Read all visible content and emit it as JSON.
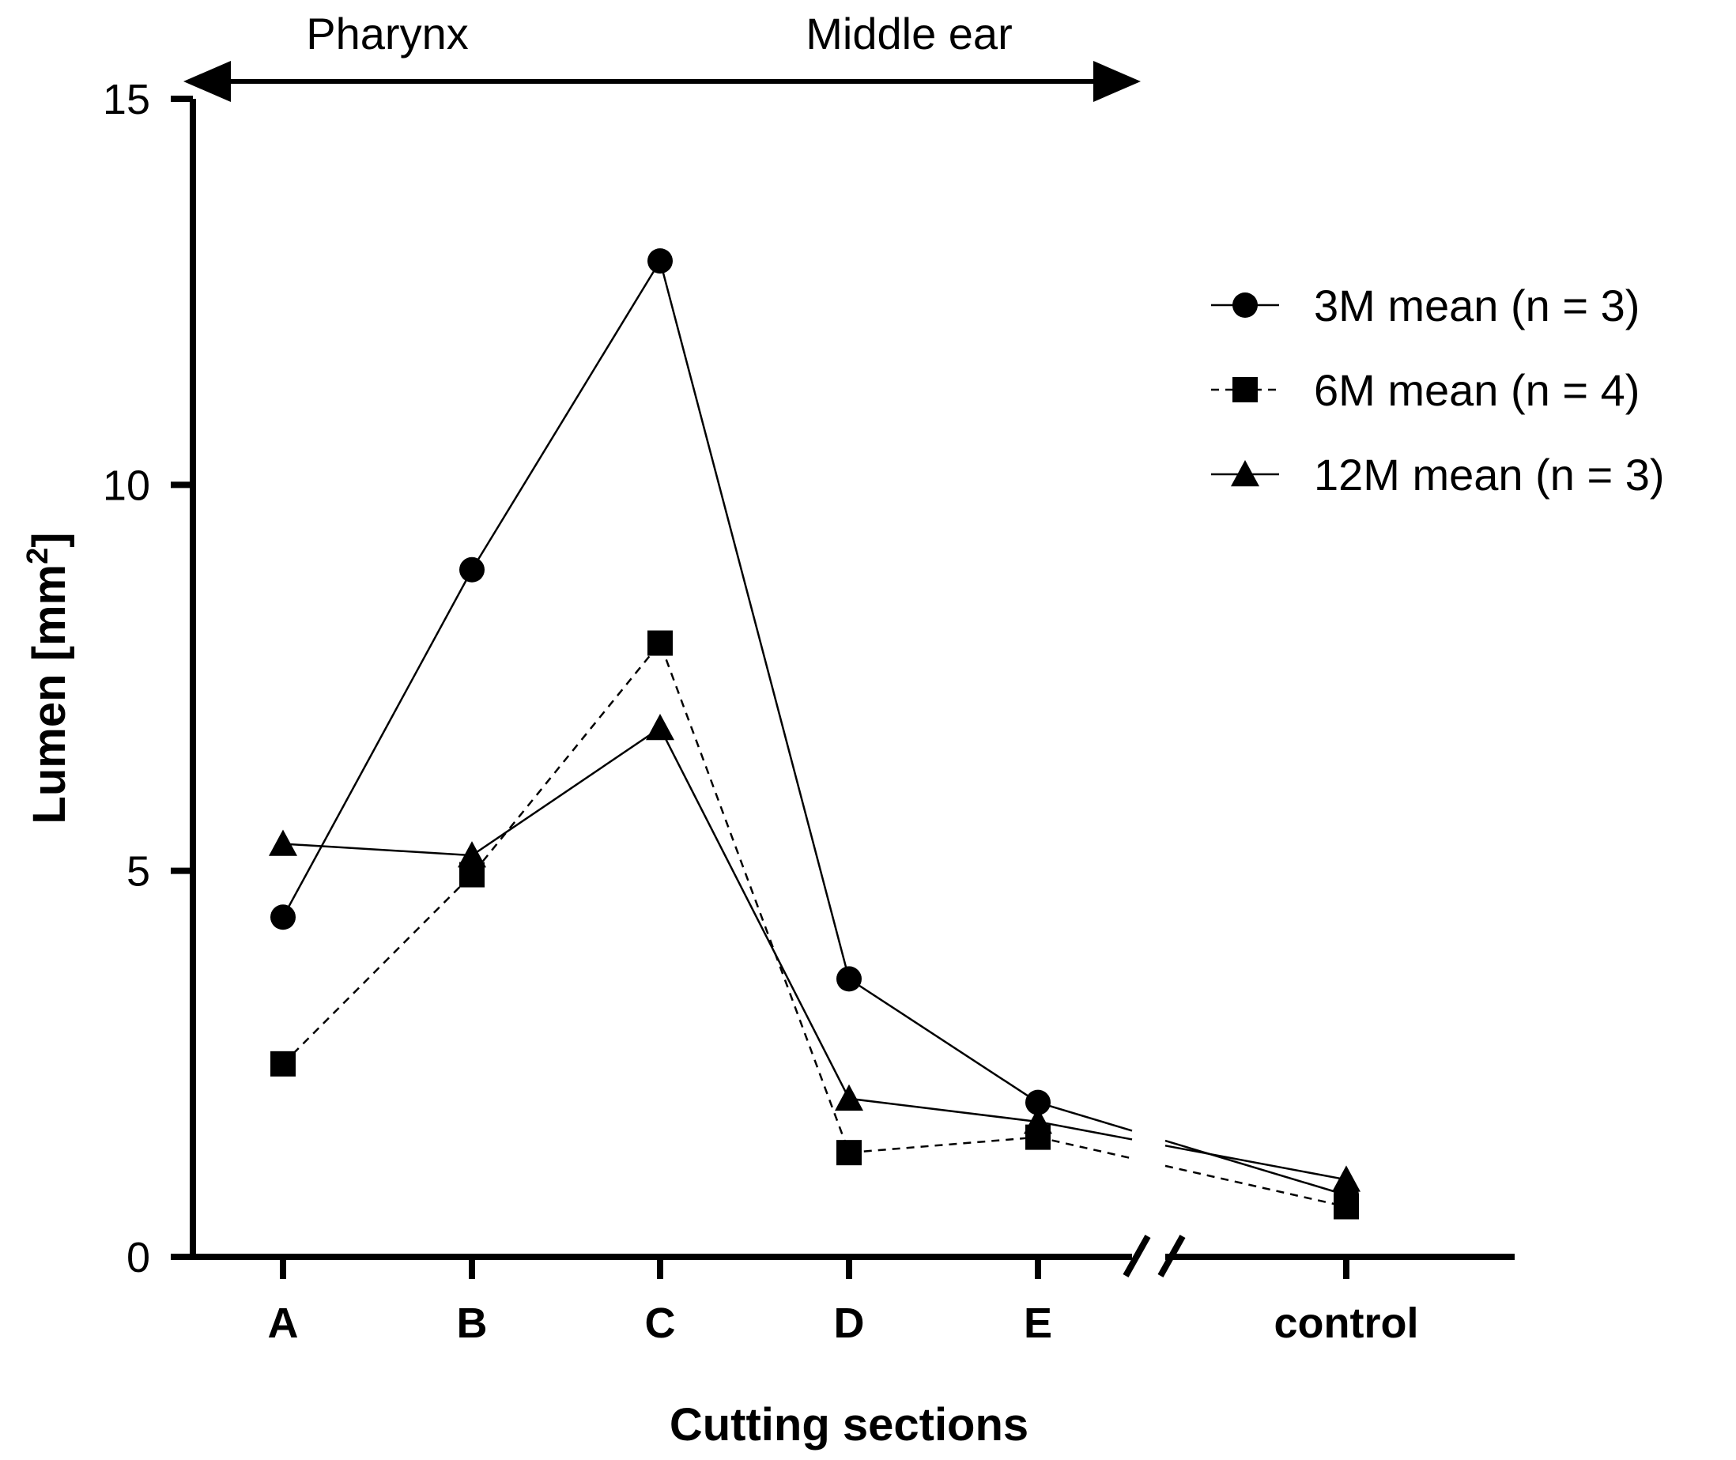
{
  "chart_data": {
    "type": "line",
    "xlabel": "Cutting sections",
    "ylabel": "Lumen [mm",
    "ylabel_sup": "2",
    "ylabel_close": "]",
    "categories": [
      "A",
      "B",
      "C",
      "D",
      "E",
      "control"
    ],
    "yticks": [
      "0",
      "5",
      "10",
      "15"
    ],
    "ylim": [
      0,
      15
    ],
    "axis_break": "between E and control",
    "region_labels": {
      "left": "Pharynx",
      "right": "Middle ear"
    },
    "legend_position": "right",
    "series": [
      {
        "name": "3M mean (n = 3)",
        "marker": "circle",
        "line": "solid",
        "values": [
          4.4,
          8.9,
          12.9,
          3.6,
          2.0,
          0.8
        ]
      },
      {
        "name": "6M mean (n = 4)",
        "marker": "square",
        "line": "dashed",
        "values": [
          2.5,
          4.95,
          7.95,
          1.35,
          1.55,
          0.65
        ]
      },
      {
        "name": "12M mean (n = 3)",
        "marker": "triangle",
        "line": "solid",
        "values": [
          5.35,
          5.2,
          6.85,
          2.05,
          1.75,
          1.0
        ]
      }
    ]
  }
}
